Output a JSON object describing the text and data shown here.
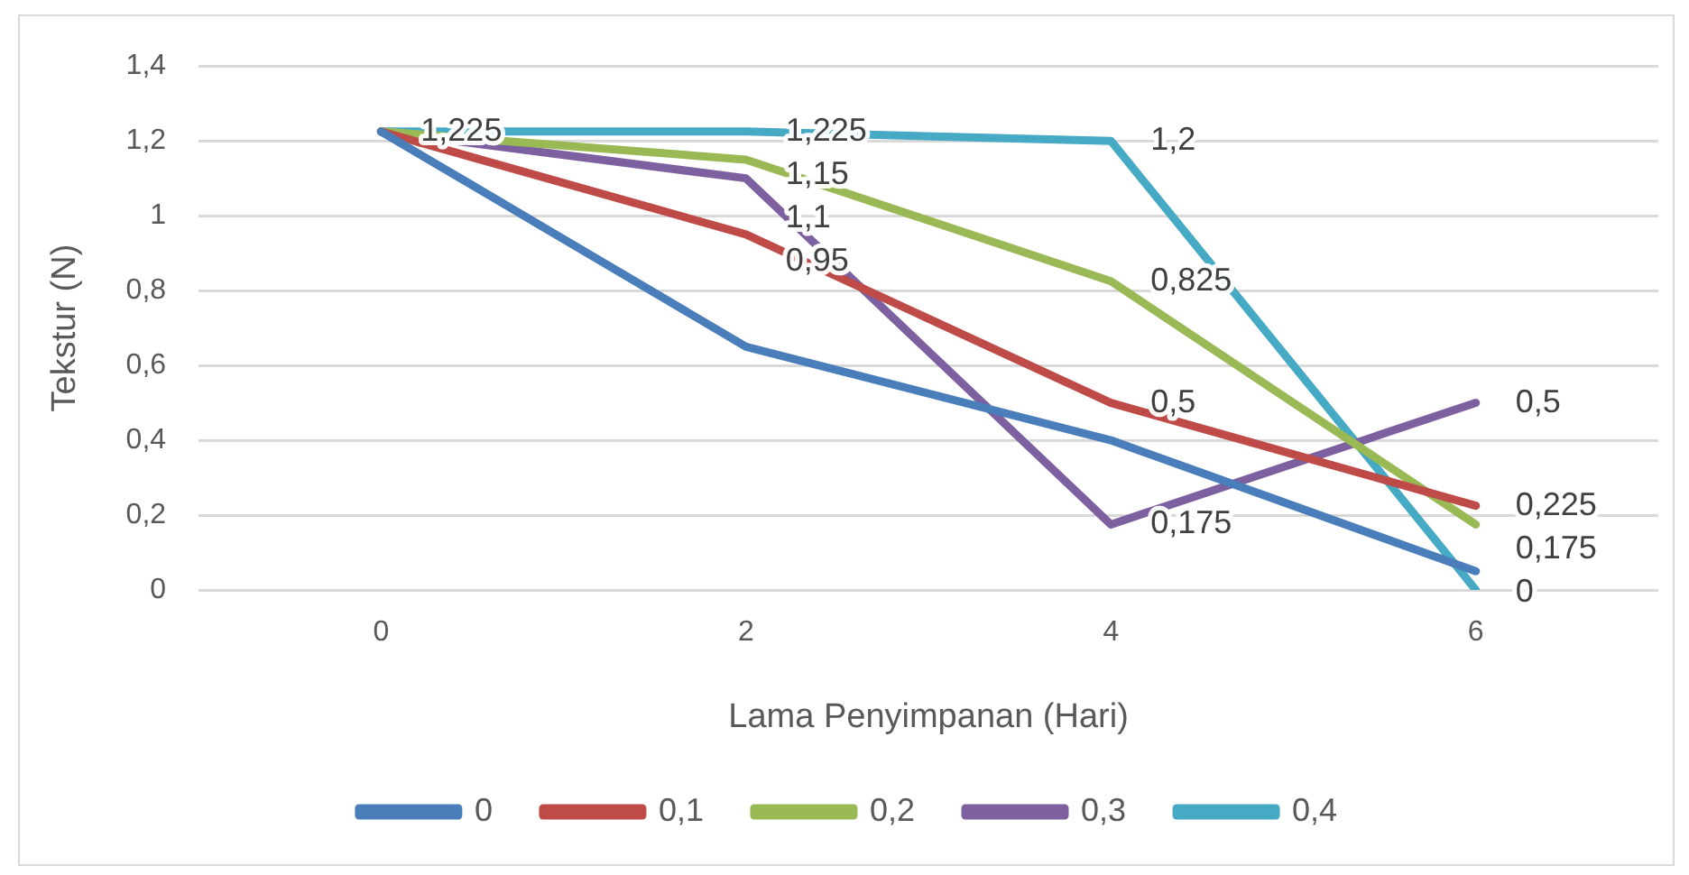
{
  "chart_data": {
    "type": "line",
    "xlabel": "Lama Penyimpanan (Hari)",
    "ylabel": "Tekstur (N)",
    "categories": [
      "0",
      "2",
      "4",
      "6"
    ],
    "series": [
      {
        "name": "0",
        "color": "#4a7ebb",
        "values": [
          1.225,
          0.65,
          0.4,
          0.05
        ]
      },
      {
        "name": "0,1",
        "color": "#be4b48",
        "values": [
          1.225,
          0.95,
          0.5,
          0.225
        ],
        "value_labels": [
          null,
          "0,95",
          "0,5",
          "0,225"
        ]
      },
      {
        "name": "0,2",
        "color": "#98b954",
        "values": [
          1.225,
          1.15,
          0.825,
          0.175
        ],
        "value_labels": [
          null,
          "1,15",
          "0,825",
          "0,175"
        ]
      },
      {
        "name": "0,3",
        "color": "#7d60a0",
        "values": [
          1.225,
          1.1,
          0.175,
          0.5
        ],
        "value_labels": [
          null,
          "1,1",
          "0,175",
          "0,5"
        ]
      },
      {
        "name": "0,4",
        "color": "#46aac5",
        "values": [
          1.225,
          1.225,
          1.2,
          0
        ],
        "value_labels": [
          "1,225",
          "1,225",
          "1,2",
          "0"
        ]
      }
    ],
    "ylim": [
      0,
      1.4
    ],
    "yticks": [
      0,
      {
        "value": 0.2,
        "label": "0,2"
      },
      {
        "value": 0.4,
        "label": "0,4"
      },
      {
        "value": 0.6,
        "label": "0,6"
      },
      {
        "value": 0.8,
        "label": "0,8"
      },
      1,
      {
        "value": 1.2,
        "label": "1,2"
      },
      {
        "value": 1.4,
        "label": "1,4"
      }
    ],
    "grid": "y",
    "legend": "bottom",
    "marker": "none",
    "line_style": "solid"
  }
}
